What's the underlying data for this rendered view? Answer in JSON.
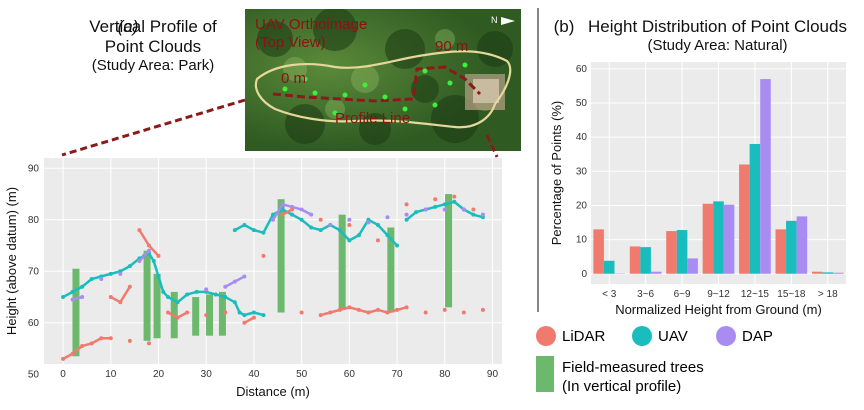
{
  "panel_a": {
    "tag": "(a)",
    "title_line1": "Vertical Profile of",
    "title_line2": "Point Clouds",
    "subtitle": "(Study Area: Park)"
  },
  "inset": {
    "title_line1": "UAV Orthoimage",
    "title_line2": "(Top View)",
    "label_start": "0 m",
    "label_end": "90 m",
    "label_profile": "Profile Line",
    "north": "N"
  },
  "panel_b": {
    "tag": "(b)",
    "title": "Height Distribution of Point Clouds",
    "subtitle": "(Study Area: Natural)"
  },
  "legend": {
    "items": [
      {
        "label": "LiDAR",
        "color": "#f07a6e"
      },
      {
        "label": "UAV",
        "color": "#19bdbd"
      },
      {
        "label": "DAP",
        "color": "#a98cf2"
      }
    ],
    "trees_line1": "Field-measured trees",
    "trees_line2": "(In vertical profile)",
    "trees_color": "#6cb86c"
  },
  "chart_data": [
    {
      "type": "scatter",
      "xlabel": "Distance (m)",
      "ylabel": "Height (above datum) (m)",
      "xlim": [
        -4,
        92
      ],
      "ylim": [
        52,
        92
      ],
      "xticks": [
        0,
        10,
        20,
        30,
        40,
        50,
        60,
        70,
        80,
        90
      ],
      "yticks": [
        50,
        60,
        70,
        80,
        90
      ],
      "grid": true,
      "series": [
        {
          "name": "UAV",
          "color": "#19bdbd",
          "points": [
            [
              0,
              65
            ],
            [
              2,
              66
            ],
            [
              4,
              67
            ],
            [
              6,
              68.5
            ],
            [
              8,
              69
            ],
            [
              10,
              69.5
            ],
            [
              12,
              70
            ],
            [
              14,
              71
            ],
            [
              16,
              72.5
            ],
            [
              17,
              73
            ],
            [
              18,
              73.5
            ],
            [
              19,
              72
            ],
            [
              20,
              69
            ],
            [
              21,
              66
            ],
            [
              22,
              65
            ],
            [
              24,
              64
            ],
            [
              26,
              65.5
            ],
            [
              28,
              66
            ],
            [
              30,
              66
            ],
            [
              32,
              65.5
            ],
            [
              34,
              65
            ],
            [
              36,
              64
            ],
            [
              37,
              62
            ],
            [
              38,
              61.5
            ],
            [
              40,
              62
            ],
            [
              42,
              61.5
            ],
            [
              36,
              78
            ],
            [
              38,
              79
            ],
            [
              40,
              78
            ],
            [
              42,
              77.5
            ],
            [
              44,
              81
            ],
            [
              46,
              82
            ],
            [
              48,
              81
            ],
            [
              50,
              80
            ],
            [
              52,
              78.5
            ],
            [
              54,
              78
            ],
            [
              56,
              79
            ],
            [
              58,
              78
            ],
            [
              60,
              76
            ],
            [
              62,
              77
            ],
            [
              64,
              80
            ],
            [
              66,
              79
            ],
            [
              68,
              77
            ],
            [
              70,
              75
            ],
            [
              72,
              80
            ],
            [
              74,
              81.5
            ],
            [
              76,
              82
            ],
            [
              78,
              82.5
            ],
            [
              80,
              83
            ],
            [
              82,
              83.5
            ],
            [
              84,
              82
            ],
            [
              86,
              81
            ],
            [
              88,
              80.5
            ]
          ]
        },
        {
          "name": "DAP",
          "color": "#a98cf2",
          "points": [
            [
              2,
              64.5
            ],
            [
              4,
              65
            ],
            [
              8,
              68.5
            ],
            [
              12,
              69.5
            ],
            [
              16,
              72
            ],
            [
              18,
              74
            ],
            [
              30,
              66.5
            ],
            [
              34,
              67
            ],
            [
              36,
              68
            ],
            [
              38,
              69
            ],
            [
              44,
              80
            ],
            [
              46,
              83
            ],
            [
              48,
              82.5
            ],
            [
              50,
              82
            ],
            [
              52,
              81
            ],
            [
              56,
              79
            ],
            [
              60,
              80
            ],
            [
              64,
              79.5
            ],
            [
              68,
              80.5
            ],
            [
              72,
              81
            ],
            [
              76,
              82
            ],
            [
              80,
              82
            ],
            [
              84,
              82
            ],
            [
              88,
              81
            ]
          ]
        },
        {
          "name": "LiDAR",
          "color": "#f07a6e",
          "points": [
            [
              0,
              53
            ],
            [
              2,
              54
            ],
            [
              4,
              55.5
            ],
            [
              6,
              56
            ],
            [
              8,
              57
            ],
            [
              10,
              57
            ],
            [
              14,
              56.5
            ],
            [
              18,
              56
            ],
            [
              16,
              78
            ],
            [
              18,
              75
            ],
            [
              20,
              73
            ],
            [
              10,
              65
            ],
            [
              12,
              64
            ],
            [
              14,
              67
            ],
            [
              22,
              62
            ],
            [
              24,
              61
            ],
            [
              26,
              62
            ],
            [
              30,
              61.5
            ],
            [
              34,
              62
            ],
            [
              38,
              60
            ],
            [
              40,
              61
            ],
            [
              42,
              73
            ],
            [
              46,
              81
            ],
            [
              48,
              82
            ],
            [
              50,
              62
            ],
            [
              54,
              61.5
            ],
            [
              56,
              62
            ],
            [
              58,
              62.5
            ],
            [
              60,
              63
            ],
            [
              62,
              62.5
            ],
            [
              64,
              62
            ],
            [
              66,
              62.5
            ],
            [
              68,
              62
            ],
            [
              70,
              62.5
            ],
            [
              72,
              63
            ],
            [
              76,
              62
            ],
            [
              80,
              62.5
            ],
            [
              84,
              62
            ],
            [
              88,
              62.5
            ],
            [
              54,
              80
            ],
            [
              60,
              79
            ],
            [
              66,
              76
            ],
            [
              72,
              83
            ],
            [
              78,
              84
            ],
            [
              82,
              84.5
            ],
            [
              86,
              82
            ]
          ]
        }
      ],
      "trees": [
        {
          "x": 2.7,
          "base": 53.5,
          "top": 70.5
        },
        {
          "x": 17.6,
          "base": 56.5,
          "top": 74
        },
        {
          "x": 19.7,
          "base": 57,
          "top": 69.5
        },
        {
          "x": 23.3,
          "base": 57,
          "top": 66
        },
        {
          "x": 27.8,
          "base": 57.5,
          "top": 65
        },
        {
          "x": 30.7,
          "base": 57.5,
          "top": 65.5
        },
        {
          "x": 33.4,
          "base": 57.5,
          "top": 66
        },
        {
          "x": 45.7,
          "base": 62,
          "top": 84
        },
        {
          "x": 58.5,
          "base": 62.5,
          "top": 81
        },
        {
          "x": 68.7,
          "base": 62,
          "top": 78.5
        },
        {
          "x": 80.8,
          "base": 63,
          "top": 85
        }
      ]
    },
    {
      "type": "bar",
      "xlabel": "Normalized Height from Ground (m)",
      "ylabel": "Percentage of Points (%)",
      "ylim": [
        -3,
        62
      ],
      "yticks": [
        0,
        10,
        20,
        30,
        40,
        50,
        60
      ],
      "grid": true,
      "categories": [
        "< 3",
        "3~6",
        "6~9",
        "9~12",
        "12~15",
        "15~18",
        "> 18"
      ],
      "series": [
        {
          "name": "LiDAR",
          "color": "#f07a6e",
          "values": [
            13,
            8,
            12.5,
            20.5,
            32,
            13,
            0.6
          ]
        },
        {
          "name": "UAV",
          "color": "#19bdbd",
          "values": [
            3.8,
            7.8,
            12.8,
            21.2,
            38,
            15.5,
            0.4
          ]
        },
        {
          "name": "DAP",
          "color": "#a98cf2",
          "values": [
            0.1,
            0.6,
            4.5,
            20.2,
            57,
            16.8,
            0.3
          ]
        }
      ]
    }
  ]
}
